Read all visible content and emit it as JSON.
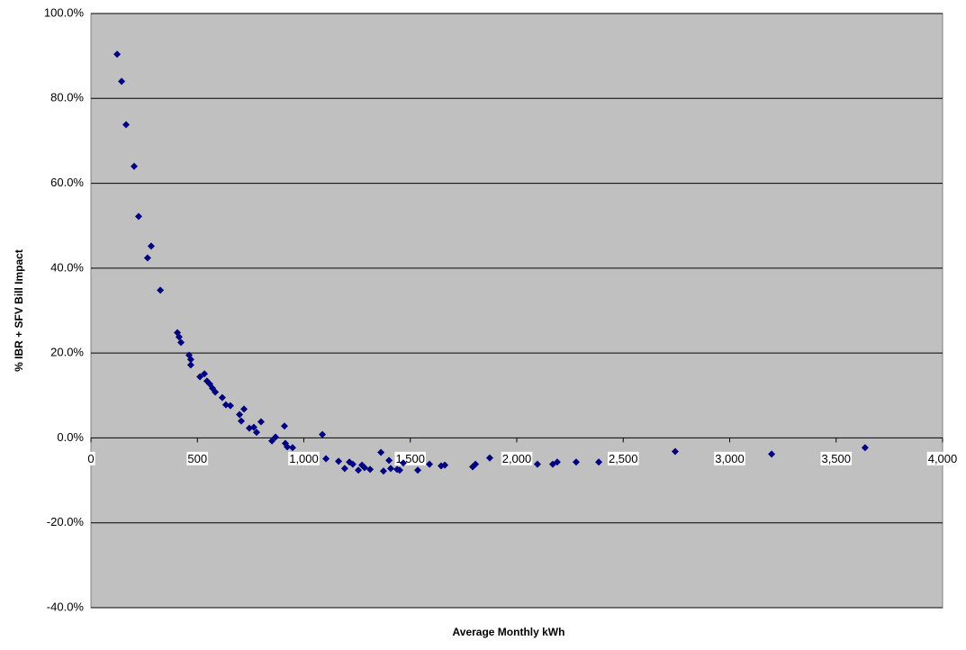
{
  "chart_data": {
    "type": "scatter",
    "xlabel": "Average Monthly kWh",
    "ylabel": "% IBR + SFV Bill Impact",
    "color": "#000080",
    "background": "#c0c0c0",
    "grid": true,
    "xlim": [
      0,
      4000
    ],
    "xticks": [
      0,
      500,
      {
        "value": 1000,
        "label": "1,000"
      },
      {
        "value": 1500,
        "label": "1,500"
      },
      {
        "value": 2000,
        "label": "2,000"
      },
      {
        "value": 2500,
        "label": "2,500"
      },
      {
        "value": 3000,
        "label": "3,000"
      },
      {
        "value": 3500,
        "label": "3,500"
      },
      {
        "value": 4000,
        "label": "4,000"
      }
    ],
    "ylim": [
      -40,
      100
    ],
    "yticks": [
      {
        "value": -40,
        "label": "-40.0%"
      },
      {
        "value": -20,
        "label": "-20.0%"
      },
      {
        "value": 0,
        "label": "0.0%"
      },
      {
        "value": 20,
        "label": "20.0%"
      },
      {
        "value": 40,
        "label": "40.0%"
      },
      {
        "value": 60,
        "label": "60.0%"
      },
      {
        "value": 80,
        "label": "80.0%"
      },
      {
        "value": 100,
        "label": "100.0%"
      }
    ],
    "x": [
      123,
      144,
      165,
      203,
      224,
      266,
      283,
      326,
      406,
      414,
      423,
      461,
      469,
      469,
      512,
      533,
      545,
      558,
      571,
      584,
      617,
      634,
      655,
      698,
      706,
      719,
      744,
      765,
      778,
      799,
      850,
      867,
      909,
      913,
      922,
      947,
      1087,
      1104,
      1163,
      1192,
      1214,
      1230,
      1256,
      1273,
      1285,
      1311,
      1362,
      1374,
      1400,
      1408,
      1438,
      1450,
      1467,
      1535,
      1590,
      1645,
      1662,
      1793,
      1806,
      1873,
      2097,
      2169,
      2190,
      2279,
      2385,
      2744,
      3197,
      3636
    ],
    "values": [
      90.4,
      84.0,
      73.8,
      64.0,
      52.2,
      42.4,
      45.2,
      34.8,
      24.8,
      23.8,
      22.5,
      19.5,
      18.5,
      17.2,
      14.4,
      15.1,
      13.4,
      12.7,
      11.7,
      10.8,
      9.5,
      7.8,
      7.6,
      5.5,
      4.0,
      6.8,
      2.3,
      2.5,
      1.3,
      3.8,
      -0.7,
      0.2,
      2.8,
      -1.3,
      -2.1,
      -2.3,
      0.8,
      -4.9,
      -5.5,
      -7.2,
      -5.7,
      -6.2,
      -7.6,
      -6.4,
      -7.0,
      -7.4,
      -3.4,
      -7.8,
      -5.3,
      -7.2,
      -7.4,
      -7.6,
      -5.9,
      -7.6,
      -6.2,
      -6.6,
      -6.4,
      -6.8,
      -6.2,
      -4.7,
      -6.2,
      -6.2,
      -5.7,
      -5.7,
      -5.7,
      -3.2,
      -3.8,
      -2.3
    ]
  }
}
